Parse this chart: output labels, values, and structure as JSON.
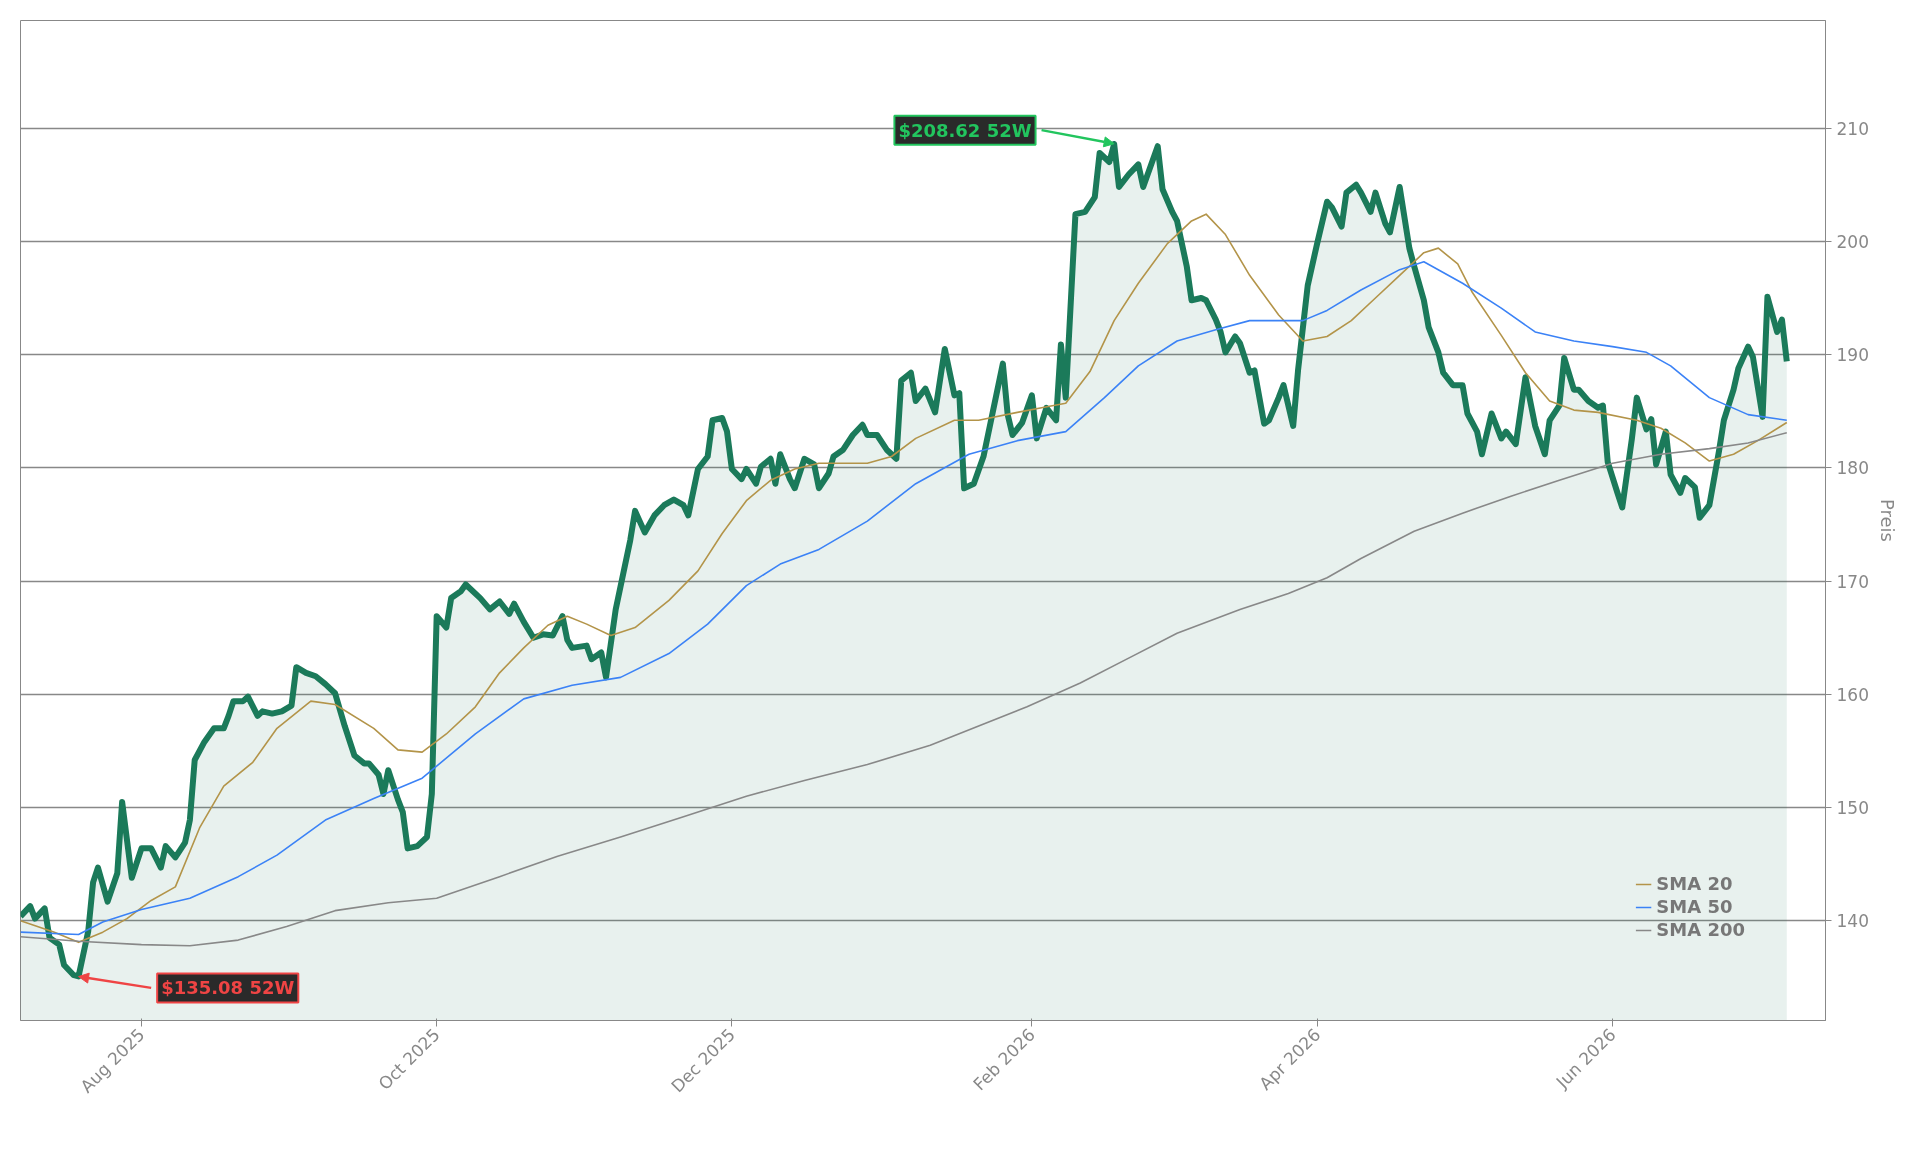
{
  "chart_data": {
    "type": "line",
    "ylabel": "Preis",
    "xlim": [
      "2025-07-07",
      "2026-07-15"
    ],
    "ylim": [
      131.2,
      219.5
    ],
    "xticks": [
      {
        "value": "2025-08-01",
        "label": "Aug 2025"
      },
      {
        "value": "2025-10-01",
        "label": "Oct 2025"
      },
      {
        "value": "2025-12-01",
        "label": "Dec 2025"
      },
      {
        "value": "2026-02-01",
        "label": "Feb 2026"
      },
      {
        "value": "2026-04-01",
        "label": "Apr 2026"
      },
      {
        "value": "2026-06-01",
        "label": "Jun 2026"
      }
    ],
    "yticks": [
      140,
      150,
      160,
      170,
      180,
      190,
      200,
      210
    ],
    "grid": "y",
    "legend": "bottom right",
    "annotations": [
      {
        "text": "$208.62 52W",
        "x": "2026-02-18",
        "y": 208.62
      },
      {
        "text": "$135.08 52W",
        "x": "2025-07-19",
        "y": 135.08
      }
    ],
    "series": [
      {
        "type": "area",
        "color": "#1b7a5a",
        "x": [
          "2025-07-07",
          "2025-07-09",
          "2025-07-10",
          "2025-07-12",
          "2025-07-13",
          "2025-07-15",
          "2025-07-16",
          "2025-07-18",
          "2025-07-19",
          "2025-07-21",
          "2025-07-22",
          "2025-07-23",
          "2025-07-25",
          "2025-07-27",
          "2025-07-28",
          "2025-07-30",
          "2025-08-01",
          "2025-08-03",
          "2025-08-05",
          "2025-08-06",
          "2025-08-08",
          "2025-08-10",
          "2025-08-11",
          "2025-08-12",
          "2025-08-14",
          "2025-08-16",
          "2025-08-18",
          "2025-08-19",
          "2025-08-20",
          "2025-08-22",
          "2025-08-23",
          "2025-08-25",
          "2025-08-26",
          "2025-08-28",
          "2025-08-30",
          "2025-09-01",
          "2025-09-02",
          "2025-09-04",
          "2025-09-06",
          "2025-09-08",
          "2025-09-10",
          "2025-09-12",
          "2025-09-14",
          "2025-09-16",
          "2025-09-17",
          "2025-09-19",
          "2025-09-20",
          "2025-09-21",
          "2025-09-23",
          "2025-09-24",
          "2025-09-25",
          "2025-09-27",
          "2025-09-29",
          "2025-09-30",
          "2025-10-01",
          "2025-10-03",
          "2025-10-04",
          "2025-10-06",
          "2025-10-07",
          "2025-10-10",
          "2025-10-12",
          "2025-10-14",
          "2025-10-16",
          "2025-10-17",
          "2025-10-19",
          "2025-10-21",
          "2025-10-23",
          "2025-10-25",
          "2025-10-27",
          "2025-10-28",
          "2025-10-29",
          "2025-11-01",
          "2025-11-02",
          "2025-11-04",
          "2025-11-05",
          "2025-11-07",
          "2025-11-10",
          "2025-11-11",
          "2025-11-13",
          "2025-11-15",
          "2025-11-17",
          "2025-11-19",
          "2025-11-21",
          "2025-11-22",
          "2025-11-24",
          "2025-11-26",
          "2025-11-27",
          "2025-11-29",
          "2025-11-30",
          "2025-12-01",
          "2025-12-03",
          "2025-12-04",
          "2025-12-06",
          "2025-12-07",
          "2025-12-09",
          "2025-12-10",
          "2025-12-11",
          "2025-12-13",
          "2025-12-14",
          "2025-12-16",
          "2025-12-18",
          "2025-12-19",
          "2025-12-21",
          "2025-12-22",
          "2025-12-24",
          "2025-12-26",
          "2025-12-28",
          "2025-12-29",
          "2025-12-31",
          "2026-01-02",
          "2026-01-04",
          "2026-01-05",
          "2026-01-07",
          "2026-01-08",
          "2026-01-10",
          "2026-01-12",
          "2026-01-14",
          "2026-01-16",
          "2026-01-17",
          "2026-01-18",
          "2026-01-20",
          "2026-01-22",
          "2026-01-26",
          "2026-01-27",
          "2026-01-28",
          "2026-01-30",
          "2026-02-01",
          "2026-02-02",
          "2026-02-04",
          "2026-02-06",
          "2026-02-07",
          "2026-02-08",
          "2026-02-10",
          "2026-02-12",
          "2026-02-14",
          "2026-02-15",
          "2026-02-17",
          "2026-02-18",
          "2026-02-19",
          "2026-02-21",
          "2026-02-23",
          "2026-02-24",
          "2026-02-27",
          "2026-02-28",
          "2026-03-02",
          "2026-03-03",
          "2026-03-05",
          "2026-03-06",
          "2026-03-08",
          "2026-03-09",
          "2026-03-11",
          "2026-03-12",
          "2026-03-13",
          "2026-03-15",
          "2026-03-16",
          "2026-03-18",
          "2026-03-19",
          "2026-03-21",
          "2026-03-22",
          "2026-03-24",
          "2026-03-25",
          "2026-03-27",
          "2026-03-28",
          "2026-03-30",
          "2026-04-01",
          "2026-04-03",
          "2026-04-04",
          "2026-04-06",
          "2026-04-07",
          "2026-04-09",
          "2026-04-10",
          "2026-04-12",
          "2026-04-13",
          "2026-04-15",
          "2026-04-16",
          "2026-04-18",
          "2026-04-20",
          "2026-04-21",
          "2026-04-23",
          "2026-04-24",
          "2026-04-26",
          "2026-04-27",
          "2026-04-29",
          "2026-05-01",
          "2026-05-02",
          "2026-05-04",
          "2026-05-05",
          "2026-05-07",
          "2026-05-09",
          "2026-05-10",
          "2026-05-12",
          "2026-05-14",
          "2026-05-16",
          "2026-05-18",
          "2026-05-19",
          "2026-05-21",
          "2026-05-22",
          "2026-05-24",
          "2026-05-25",
          "2026-05-27",
          "2026-05-29",
          "2026-05-30",
          "2026-05-31",
          "2026-06-02",
          "2026-06-03",
          "2026-06-05",
          "2026-06-06",
          "2026-06-08",
          "2026-06-09",
          "2026-06-10",
          "2026-06-12",
          "2026-06-13",
          "2026-06-15",
          "2026-06-16",
          "2026-06-18",
          "2026-06-19",
          "2026-06-21",
          "2026-06-23",
          "2026-06-24",
          "2026-06-26",
          "2026-06-27",
          "2026-06-29",
          "2026-06-30",
          "2026-07-02",
          "2026-07-03",
          "2026-07-05",
          "2026-07-06",
          "2026-07-07"
        ],
        "values": [
          140.4,
          141.3,
          140.2,
          141.1,
          138.5,
          137.9,
          136.1,
          135.2,
          135.1,
          139.1,
          143.4,
          144.7,
          141.7,
          144.2,
          150.5,
          143.8,
          146.4,
          146.4,
          144.7,
          146.6,
          145.6,
          146.9,
          148.9,
          154.2,
          155.8,
          157.0,
          157.0,
          158.1,
          159.4,
          159.4,
          159.8,
          158.1,
          158.5,
          158.3,
          158.5,
          159.0,
          162.4,
          161.9,
          161.6,
          160.9,
          160.1,
          157.2,
          154.6,
          153.9,
          153.9,
          152.9,
          151.2,
          153.3,
          150.7,
          149.6,
          146.4,
          146.6,
          147.4,
          151.2,
          166.9,
          165.9,
          168.5,
          169.1,
          169.7,
          168.5,
          167.5,
          168.2,
          167.1,
          168.0,
          166.4,
          165.0,
          165.3,
          165.2,
          166.9,
          164.8,
          164.1,
          164.3,
          163.1,
          163.7,
          161.5,
          167.5,
          173.6,
          176.2,
          174.3,
          175.8,
          176.7,
          177.2,
          176.7,
          175.8,
          179.9,
          181.0,
          184.2,
          184.4,
          183.2,
          179.9,
          179.0,
          179.9,
          178.6,
          180.1,
          180.8,
          178.6,
          181.2,
          179.0,
          178.2,
          180.8,
          180.3,
          178.2,
          179.5,
          181.0,
          181.6,
          182.9,
          183.8,
          182.9,
          182.9,
          181.6,
          180.8,
          187.7,
          188.4,
          185.9,
          187.0,
          184.9,
          190.5,
          186.4,
          186.6,
          178.2,
          178.6,
          181.0,
          189.2,
          184.7,
          182.9,
          184.0,
          186.4,
          182.6,
          185.3,
          184.2,
          190.9,
          186.2,
          202.4,
          202.6,
          203.9,
          207.8,
          207.0,
          208.6,
          204.8,
          205.9,
          206.8,
          204.8,
          208.4,
          204.6,
          202.6,
          201.8,
          197.8,
          194.8,
          195.0,
          194.8,
          193.1,
          192.0,
          190.2,
          191.6,
          191.0,
          188.4,
          188.6,
          183.9,
          184.2,
          186.2,
          187.3,
          183.7,
          188.6,
          196.1,
          199.9,
          203.5,
          203.0,
          201.3,
          204.3,
          205.0,
          204.3,
          202.6,
          204.3,
          201.6,
          200.8,
          204.8,
          199.4,
          197.8,
          194.8,
          192.4,
          190.2,
          188.4,
          187.3,
          187.3,
          184.8,
          183.2,
          181.2,
          184.8,
          182.6,
          183.2,
          182.1,
          188.0,
          183.7,
          181.2,
          184.2,
          185.5,
          189.7,
          186.9,
          186.9,
          185.9,
          185.3,
          185.5,
          180.5,
          177.8,
          176.5,
          182.6,
          186.2,
          183.4,
          184.3,
          180.3,
          183.2,
          179.4,
          177.8,
          179.1,
          178.3,
          175.6,
          176.7,
          181.5,
          184.2,
          186.9,
          188.8,
          190.7,
          189.8,
          184.5,
          195.1,
          192.0,
          193.1,
          189.4
        ]
      },
      {
        "name": "SMA 20",
        "color": "#b39449",
        "x": [
          "2025-07-07",
          "2025-07-14",
          "2025-07-19",
          "2025-07-24",
          "2025-07-29",
          "2025-08-03",
          "2025-08-08",
          "2025-08-13",
          "2025-08-18",
          "2025-08-24",
          "2025-08-29",
          "2025-09-05",
          "2025-09-10",
          "2025-09-18",
          "2025-09-23",
          "2025-09-28",
          "2025-10-03",
          "2025-10-09",
          "2025-10-14",
          "2025-10-19",
          "2025-10-24",
          "2025-10-28",
          "2025-11-01",
          "2025-11-06",
          "2025-11-11",
          "2025-11-18",
          "2025-11-24",
          "2025-11-29",
          "2025-12-04",
          "2025-12-09",
          "2025-12-14",
          "2025-12-19",
          "2025-12-29",
          "2026-01-03",
          "2026-01-08",
          "2026-01-16",
          "2026-01-21",
          "2026-01-29",
          "2026-02-03",
          "2026-02-08",
          "2026-02-13",
          "2026-02-18",
          "2026-02-23",
          "2026-03-01",
          "2026-03-06",
          "2026-03-09",
          "2026-03-13",
          "2026-03-18",
          "2026-03-24",
          "2026-03-29",
          "2026-04-03",
          "2026-04-08",
          "2026-04-13",
          "2026-04-18",
          "2026-04-23",
          "2026-04-26",
          "2026-04-30",
          "2026-05-03",
          "2026-05-09",
          "2026-05-14",
          "2026-05-19",
          "2026-05-24",
          "2026-05-29",
          "2026-06-06",
          "2026-06-11",
          "2026-06-16",
          "2026-06-21",
          "2026-06-26",
          "2026-07-01",
          "2026-07-07"
        ],
        "values": [
          140.0,
          139.0,
          138.1,
          139.0,
          140.2,
          141.8,
          143.0,
          148.2,
          151.9,
          154.0,
          157.0,
          159.4,
          159.1,
          157.0,
          155.1,
          154.9,
          156.5,
          158.9,
          161.9,
          164.1,
          166.1,
          166.9,
          166.2,
          165.2,
          165.9,
          168.3,
          170.9,
          174.2,
          177.1,
          178.9,
          179.9,
          180.4,
          180.4,
          181.0,
          182.6,
          184.2,
          184.2,
          184.9,
          185.3,
          185.7,
          188.5,
          193.0,
          196.3,
          199.8,
          201.8,
          202.4,
          200.6,
          197.0,
          193.5,
          191.2,
          191.6,
          193.0,
          195.0,
          197.0,
          199.0,
          199.4,
          198.0,
          195.5,
          191.7,
          188.4,
          185.9,
          185.1,
          184.9,
          184.2,
          183.5,
          182.2,
          180.6,
          181.2,
          182.4,
          184.0
        ]
      },
      {
        "name": "SMA 50",
        "color": "#3b82f6",
        "x": [
          "2025-07-07",
          "2025-07-19",
          "2025-07-24",
          "2025-08-01",
          "2025-08-11",
          "2025-08-21",
          "2025-08-29",
          "2025-09-08",
          "2025-09-18",
          "2025-09-28",
          "2025-10-09",
          "2025-10-19",
          "2025-10-29",
          "2025-11-08",
          "2025-11-18",
          "2025-11-26",
          "2025-12-04",
          "2025-12-11",
          "2025-12-19",
          "2025-12-29",
          "2026-01-08",
          "2026-01-19",
          "2026-01-29",
          "2026-02-08",
          "2026-02-16",
          "2026-02-23",
          "2026-03-03",
          "2026-03-11",
          "2026-03-18",
          "2026-03-29",
          "2026-04-03",
          "2026-04-10",
          "2026-04-18",
          "2026-04-23",
          "2026-05-01",
          "2026-05-09",
          "2026-05-16",
          "2026-05-24",
          "2026-06-01",
          "2026-06-08",
          "2026-06-13",
          "2026-06-21",
          "2026-06-29",
          "2026-07-07"
        ],
        "values": [
          139.0,
          138.8,
          139.9,
          141.0,
          142.0,
          143.9,
          145.8,
          148.9,
          150.8,
          152.6,
          156.5,
          159.6,
          160.8,
          161.5,
          163.6,
          166.2,
          169.6,
          171.5,
          172.8,
          175.3,
          178.6,
          181.2,
          182.4,
          183.2,
          186.2,
          189.0,
          191.2,
          192.2,
          193.0,
          193.0,
          193.9,
          195.7,
          197.5,
          198.2,
          196.3,
          194.1,
          192.0,
          191.2,
          190.7,
          190.2,
          189.0,
          186.2,
          184.7,
          184.2
        ]
      },
      {
        "name": "SMA 200",
        "color": "#888888",
        "x": [
          "2025-07-07",
          "2025-07-19",
          "2025-08-01",
          "2025-08-11",
          "2025-08-21",
          "2025-08-31",
          "2025-09-10",
          "2025-09-21",
          "2025-10-01",
          "2025-10-14",
          "2025-10-26",
          "2025-11-08",
          "2025-11-21",
          "2025-12-04",
          "2025-12-16",
          "2025-12-29",
          "2026-01-11",
          "2026-01-21",
          "2026-01-31",
          "2026-02-11",
          "2026-02-21",
          "2026-03-03",
          "2026-03-16",
          "2026-03-26",
          "2026-04-03",
          "2026-04-10",
          "2026-04-21",
          "2026-05-01",
          "2026-05-11",
          "2026-05-21",
          "2026-06-01",
          "2026-06-11",
          "2026-06-21",
          "2026-06-29",
          "2026-07-07"
        ],
        "values": [
          138.6,
          138.2,
          137.9,
          137.8,
          138.3,
          139.5,
          140.9,
          141.6,
          142.0,
          143.9,
          145.7,
          147.4,
          149.2,
          151.0,
          152.4,
          153.8,
          155.5,
          157.2,
          158.9,
          161.0,
          163.2,
          165.4,
          167.5,
          168.9,
          170.3,
          172.0,
          174.4,
          176.0,
          177.5,
          178.9,
          180.4,
          181.2,
          181.7,
          182.2,
          183.1
        ]
      }
    ]
  }
}
